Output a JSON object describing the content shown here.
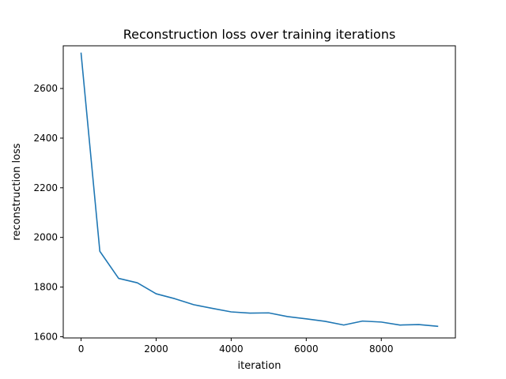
{
  "chart_data": {
    "type": "line",
    "title": "Reconstruction loss over training iterations",
    "xlabel": "iteration",
    "ylabel": "reconstruction loss",
    "xlim": [
      -475,
      9975
    ],
    "ylim": [
      1595,
      2772
    ],
    "xticks": [
      0,
      2000,
      4000,
      6000,
      8000
    ],
    "xtick_labels": [
      "0",
      "2000",
      "4000",
      "6000",
      "8000"
    ],
    "yticks": [
      1600,
      1800,
      2000,
      2200,
      2400,
      2600
    ],
    "ytick_labels": [
      "1600",
      "1800",
      "2000",
      "2200",
      "2400",
      "2600"
    ],
    "grid": false,
    "line_color": "#1f77b4",
    "series": [
      {
        "x": [
          0,
          500,
          1000,
          1500,
          2000,
          2500,
          3000,
          3500,
          4000,
          4500,
          5000,
          5500,
          6000,
          6500,
          7000,
          7500,
          8000,
          8500,
          9000,
          9500
        ],
        "y": [
          2742,
          1944,
          1835,
          1817,
          1773,
          1753,
          1729,
          1714,
          1700,
          1695,
          1696,
          1681,
          1672,
          1662,
          1647,
          1663,
          1659,
          1647,
          1649,
          1642
        ]
      }
    ]
  }
}
